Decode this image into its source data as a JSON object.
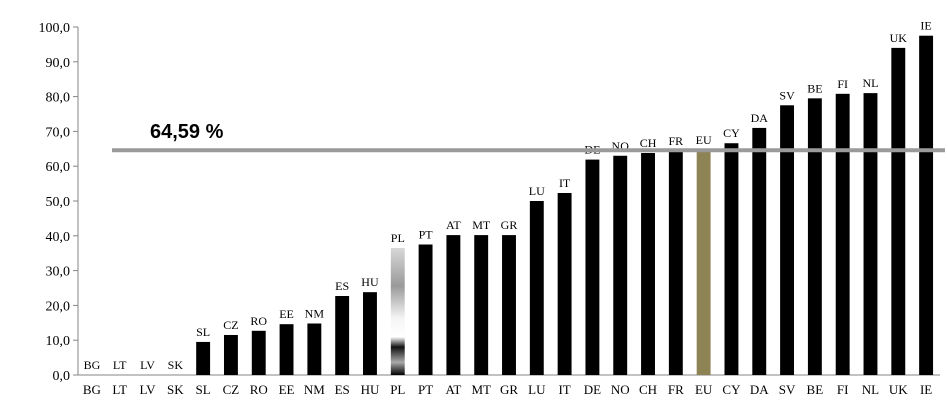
{
  "chart_data": {
    "type": "bar",
    "categories": [
      "BG",
      "LT",
      "LV",
      "SK",
      "SL",
      "CZ",
      "RO",
      "EE",
      "NM",
      "ES",
      "HU",
      "PL",
      "PT",
      "AT",
      "MT",
      "GR",
      "LU",
      "IT",
      "DE",
      "NO",
      "CH",
      "FR",
      "EU",
      "CY",
      "DA",
      "SV",
      "BE",
      "FI",
      "NL",
      "UK",
      "IE"
    ],
    "values": [
      0,
      0,
      0,
      0,
      9.5,
      11.5,
      12.7,
      14.6,
      14.8,
      22.7,
      23.8,
      36.5,
      37.5,
      40.2,
      40.2,
      40.2,
      50.0,
      52.3,
      61.9,
      63.0,
      63.8,
      64.3,
      64.6,
      66.6,
      71.0,
      77.5,
      79.5,
      80.8,
      81.0,
      94.0,
      97.5
    ],
    "ylim": [
      0,
      100
    ],
    "yticks": [
      "0,0",
      "10,0",
      "20,0",
      "30,0",
      "40,0",
      "50,0",
      "60,0",
      "70,0",
      "80,0",
      "90,0",
      "100,0"
    ],
    "reference_line": {
      "value": 64.59,
      "label": "64,59 %"
    },
    "bar_color": "#000000",
    "highlight_category": "EU",
    "highlight_color": "#8e8355",
    "gradient_category": "PL",
    "reference_line_color": "#9a9a9a",
    "grid": false,
    "legend": "none",
    "data_labels": true
  }
}
